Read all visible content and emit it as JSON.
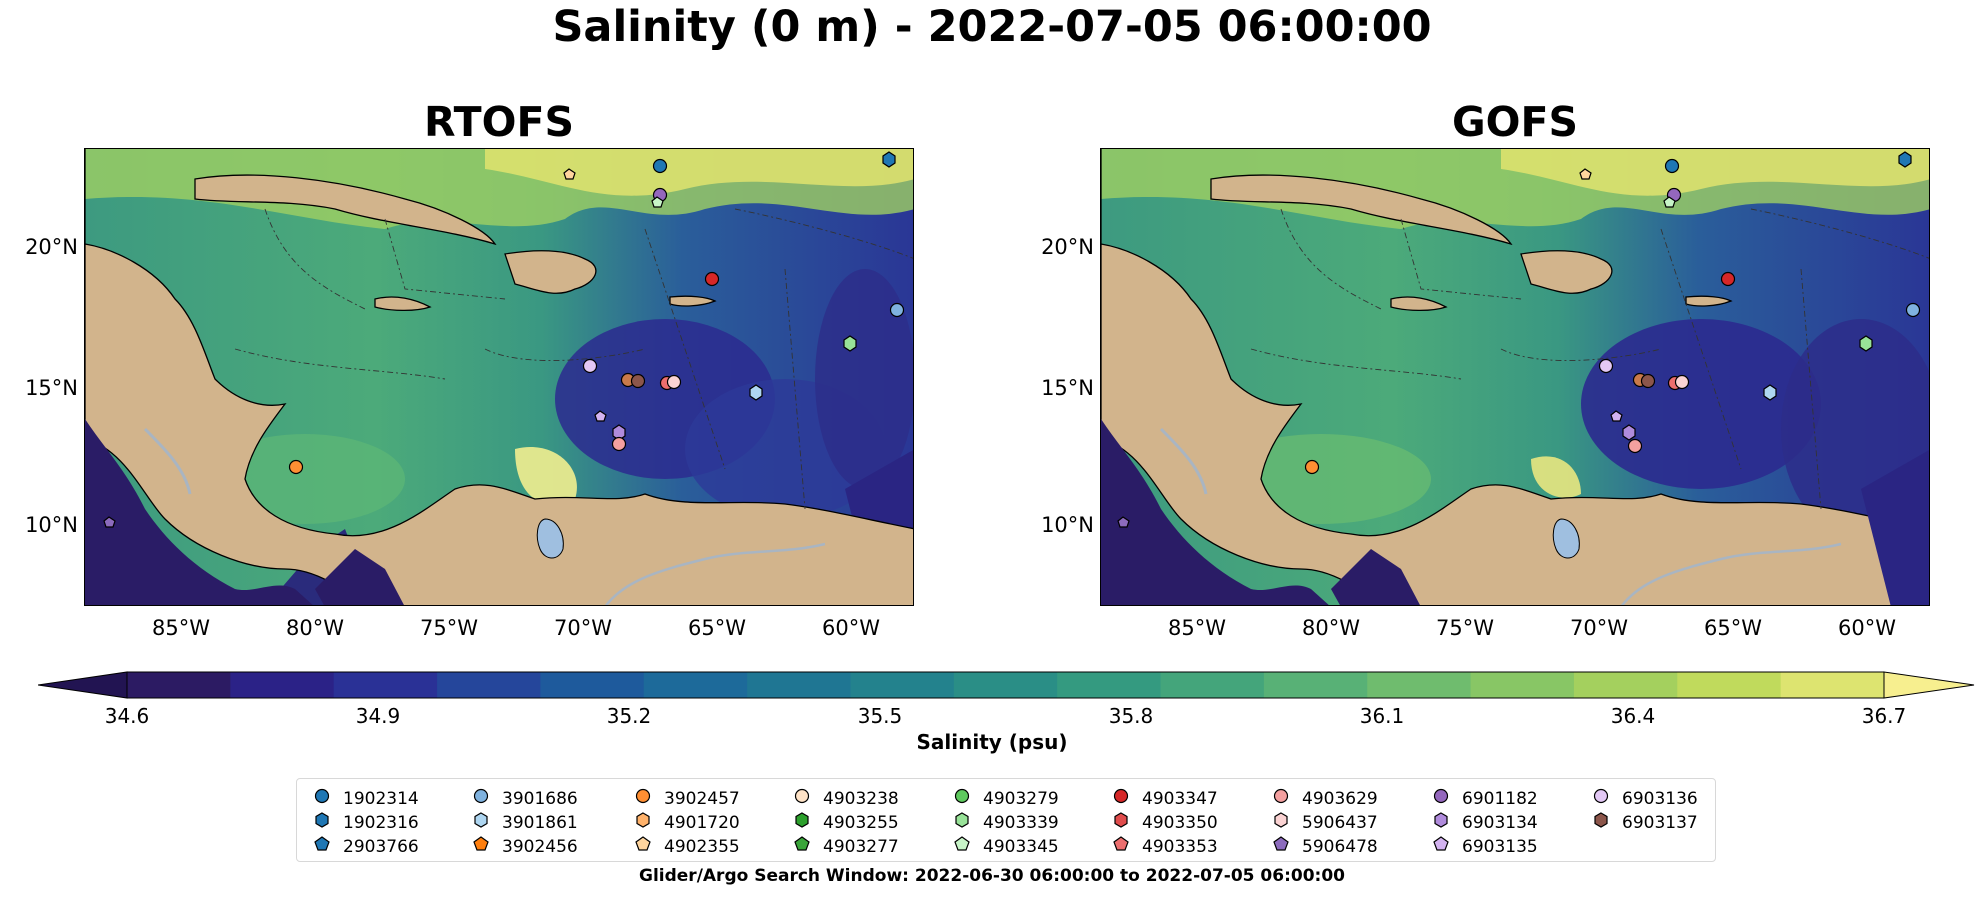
{
  "title": "Salinity (0 m) - 2022-07-05 06:00:00",
  "panels": [
    {
      "title": "RTOFS"
    },
    {
      "title": "GOFS"
    }
  ],
  "axes": {
    "y_ticks": [
      "20°N",
      "15°N",
      "10°N"
    ],
    "x_ticks": [
      "85°W",
      "80°W",
      "75°W",
      "70°W",
      "65°W",
      "60°W"
    ]
  },
  "colorbar": {
    "label": "Salinity (psu)",
    "ticks": [
      "34.6",
      "34.9",
      "35.2",
      "35.5",
      "35.8",
      "36.1",
      "36.4",
      "36.7"
    ],
    "colors": [
      "#2c1b63",
      "#2b2287",
      "#2a3196",
      "#25469b",
      "#1e5a9c",
      "#1d6a9a",
      "#1f7693",
      "#23828d",
      "#2a8e86",
      "#349a80",
      "#44a57b",
      "#58b176",
      "#6fbc6e",
      "#88c665",
      "#a4d05e",
      "#c0da5c",
      "#dde470"
    ],
    "under_color": "#221452",
    "over_color": "#f7ef8f"
  },
  "legend": {
    "items": [
      {
        "label": "1902314",
        "marker": "circle",
        "color": "#1f77b4"
      },
      {
        "label": "1902316",
        "marker": "hexagon",
        "color": "#1f77b4"
      },
      {
        "label": "2903766",
        "marker": "pentagon",
        "color": "#1f77b4"
      },
      {
        "label": "3901686",
        "marker": "circle",
        "color": "#7fb2df"
      },
      {
        "label": "3901861",
        "marker": "hexagon",
        "color": "#aed6f1"
      },
      {
        "label": "3902456",
        "marker": "pentagon",
        "color": "#ff7f0e"
      },
      {
        "label": "3902457",
        "marker": "circle",
        "color": "#ff8f33"
      },
      {
        "label": "4901720",
        "marker": "hexagon",
        "color": "#ffb26b"
      },
      {
        "label": "4902355",
        "marker": "pentagon",
        "color": "#ffd59e"
      },
      {
        "label": "4903238",
        "marker": "circle",
        "color": "#ffe3c7"
      },
      {
        "label": "4903255",
        "marker": "hexagon",
        "color": "#2ca02c"
      },
      {
        "label": "4903277",
        "marker": "pentagon",
        "color": "#3aa53a"
      },
      {
        "label": "4903279",
        "marker": "circle",
        "color": "#5ec95e"
      },
      {
        "label": "4903339",
        "marker": "hexagon",
        "color": "#98e298"
      },
      {
        "label": "4903345",
        "marker": "pentagon",
        "color": "#c8f5c8"
      },
      {
        "label": "4903347",
        "marker": "circle",
        "color": "#d62728"
      },
      {
        "label": "4903350",
        "marker": "hexagon",
        "color": "#e04c4c"
      },
      {
        "label": "4903353",
        "marker": "pentagon",
        "color": "#ec6e6e"
      },
      {
        "label": "4903629",
        "marker": "circle",
        "color": "#f4a0a0"
      },
      {
        "label": "5906437",
        "marker": "hexagon",
        "color": "#fbd3d3"
      },
      {
        "label": "5906478",
        "marker": "pentagon",
        "color": "#8c6bbd"
      },
      {
        "label": "6901182",
        "marker": "circle",
        "color": "#9467bd"
      },
      {
        "label": "6903134",
        "marker": "hexagon",
        "color": "#b08bdc"
      },
      {
        "label": "6903135",
        "marker": "pentagon",
        "color": "#d3b3f0"
      },
      {
        "label": "6903136",
        "marker": "circle",
        "color": "#e3c8f5"
      },
      {
        "label": "6903137",
        "marker": "hexagon",
        "color": "#8c564b"
      }
    ]
  },
  "search_window": "Glider/Argo Search Window: 2022-06-30 06:00:00 to 2022-07-05 06:00:00",
  "map_colors": {
    "land": "#d2b48c",
    "lake": "#9fbfe0",
    "river": "#a9b5c2",
    "coast": "#000000"
  }
}
